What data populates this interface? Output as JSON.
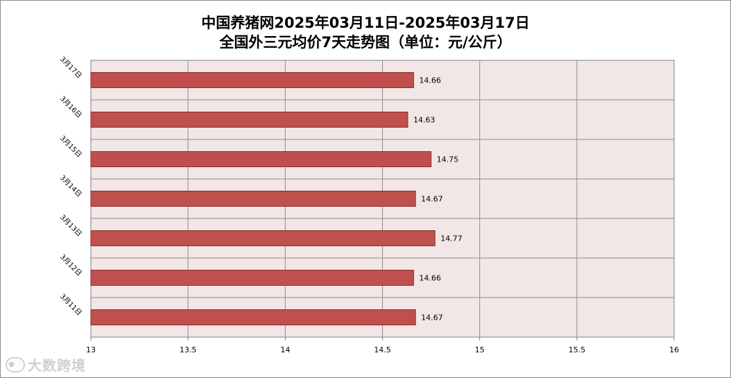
{
  "chart_data": {
    "type": "bar",
    "orientation": "horizontal",
    "title": "中国养猪网2025年03月11日-2025年03月17日",
    "subtitle": "全国外三元均价7天走势图（单位：元/公斤）",
    "categories": [
      "3月17日",
      "3月16日",
      "3月15日",
      "3月14日",
      "3月13日",
      "3月12日",
      "3月11日"
    ],
    "values": [
      14.66,
      14.63,
      14.75,
      14.67,
      14.77,
      14.66,
      14.67
    ],
    "data_labels": [
      "14.66",
      "14.63",
      "14.75",
      "14.67",
      "14.77",
      "14.66",
      "14.67"
    ],
    "xlim": [
      13,
      16
    ],
    "x_ticks": [
      "13",
      "13.5",
      "14",
      "14.5",
      "15",
      "15.5",
      "16"
    ],
    "x_tick_values": [
      13,
      13.5,
      14,
      14.5,
      15,
      15.5,
      16
    ],
    "grid": true,
    "bar_color": "#c0504d",
    "bar_border_color": "#8b2e2b",
    "plot_bg_color": "#f2e6e6"
  },
  "watermark": {
    "text": "大数跨境",
    "logo_icon": "dashuju-logo-icon"
  }
}
